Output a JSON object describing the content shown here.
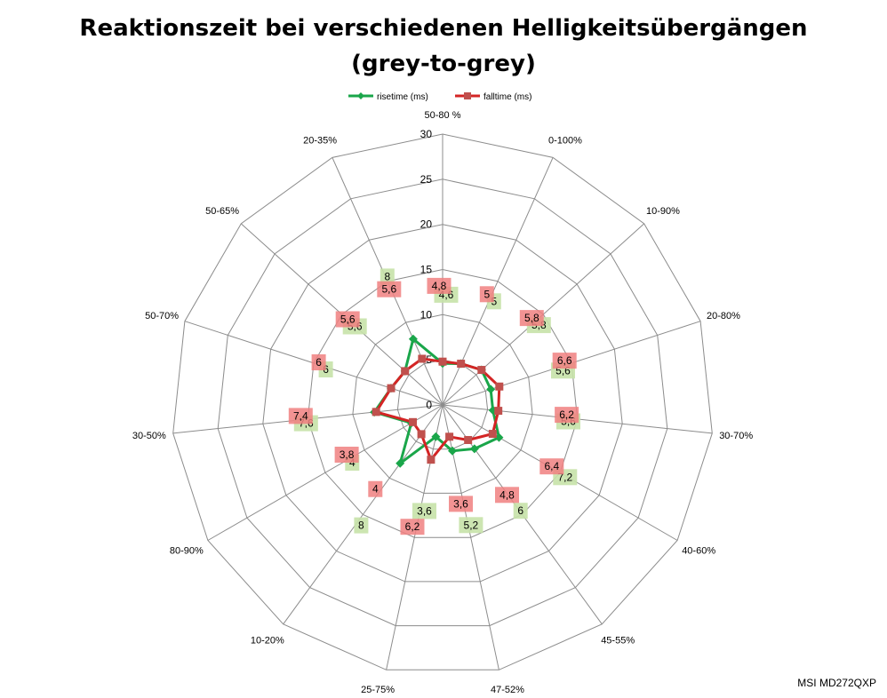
{
  "chart_data": {
    "type": "radar",
    "title_line1": "Reaktionszeit bei verschiedenen Helligkeitsübergängen",
    "title_line2": "(grey-to-grey)",
    "categories": [
      "50-80 %",
      "0-100%",
      "10-90%",
      "20-80%",
      "30-70%",
      "40-60%",
      "45-55%",
      "47-52%",
      "25-75%",
      "10-20%",
      "80-90%",
      "30-50%",
      "50-70%",
      "50-65%",
      "20-35%"
    ],
    "radial_ticks": [
      "0",
      "5",
      "10",
      "15",
      "20",
      "25",
      "30"
    ],
    "rmax": 30,
    "rstep": 5,
    "series": [
      {
        "name": "risetime (ms)",
        "color": "#1aa64a",
        "label_color": "#c6e2a8",
        "values": [
          4.6,
          5,
          5.8,
          5.6,
          5.6,
          7.2,
          6,
          5.2,
          3.6,
          8,
          4,
          7.6,
          6,
          5.6,
          8
        ],
        "labels": [
          "4,6",
          "5",
          "5,8",
          "5,6",
          "5,6",
          "7,2",
          "6",
          "5,2",
          "3,6",
          "8",
          "4",
          "7,6",
          "6",
          "5,6",
          "8"
        ]
      },
      {
        "name": "falltime (ms)",
        "color": "#d42424",
        "label_color": "#f08080",
        "values": [
          4.8,
          5,
          5.8,
          6.6,
          6.2,
          6.4,
          4.8,
          3.6,
          6.2,
          4,
          3.8,
          7.4,
          6,
          5.6,
          5.6
        ],
        "labels": [
          "4,8",
          "5",
          "5,8",
          "6,6",
          "6,2",
          "6,4",
          "4,8",
          "3,6",
          "6,2",
          "4",
          "3,8",
          "7,4",
          "6",
          "5,6",
          "5,6"
        ]
      }
    ],
    "legend": "top",
    "grid": true
  },
  "watermark": "MSI MD272QXP"
}
